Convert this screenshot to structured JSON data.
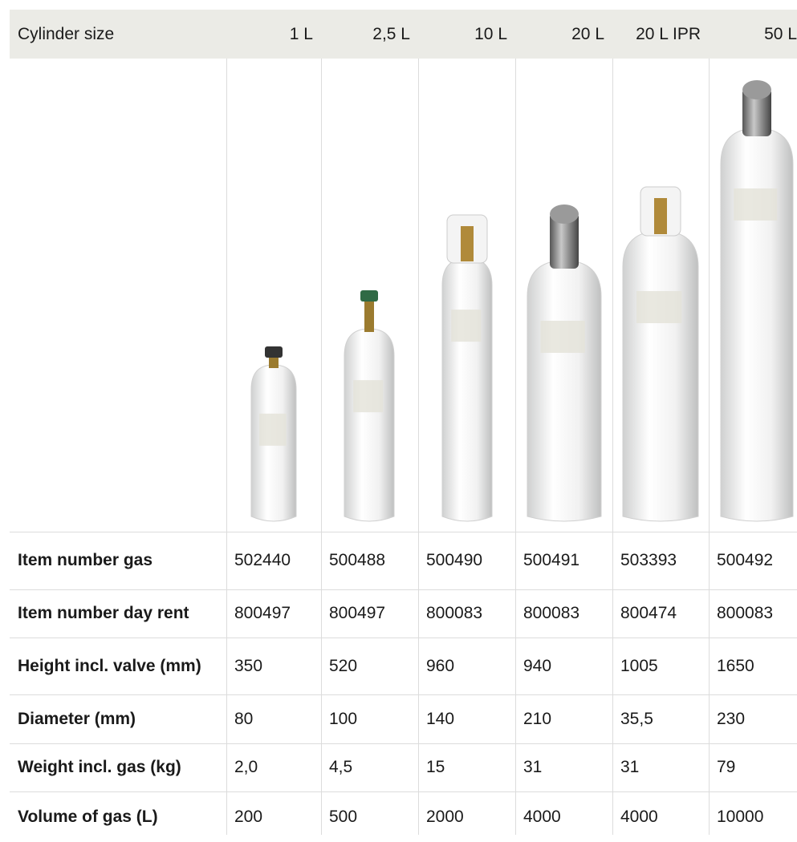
{
  "table": {
    "header": [
      "Cylinder size",
      "1 L",
      "2,5 L",
      "10 L",
      "20 L",
      "20 L IPR",
      "50 L"
    ],
    "rows": [
      [
        "Item number gas",
        "502440",
        "500488",
        "500490",
        "500491",
        "503393",
        "500492"
      ],
      [
        "Item number day rent",
        "800497",
        "800497",
        "800083",
        "800083",
        "800474",
        "800083"
      ],
      [
        "Height incl. valve (mm)",
        "350",
        "520",
        "960",
        "940",
        "1005",
        "1650"
      ],
      [
        "Diameter (mm)",
        "80",
        "100",
        "140",
        "210",
        "35,5",
        "230"
      ],
      [
        "Weight incl. gas (kg)",
        "2,0",
        "4,5",
        "15",
        "31",
        "31",
        "79"
      ],
      [
        "Volume of gas (L)",
        "200",
        "500",
        "2000",
        "4000",
        "4000",
        "10000"
      ]
    ]
  }
}
